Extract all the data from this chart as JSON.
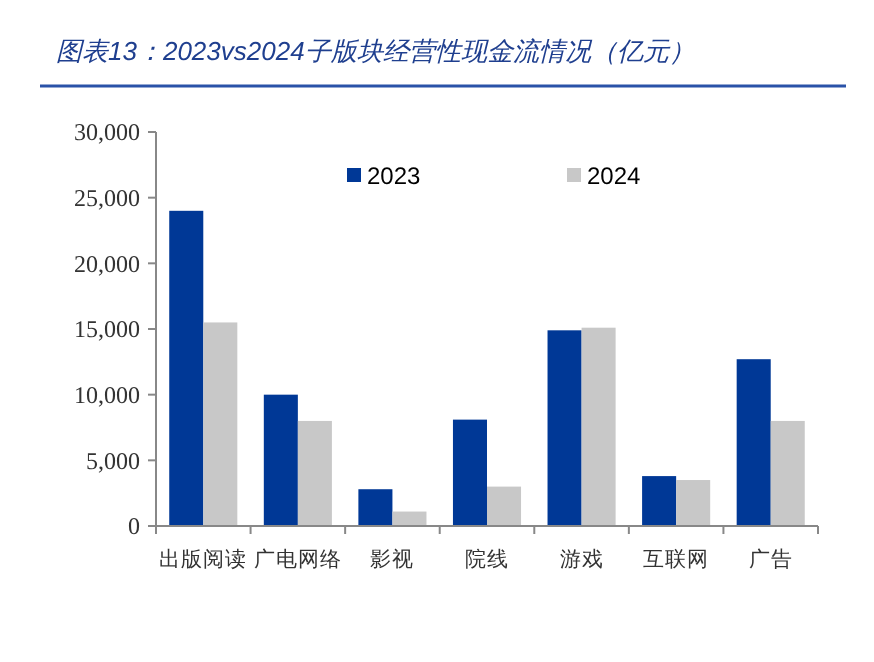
{
  "chart_data": {
    "type": "bar",
    "title": "图表13：2023vs2024子版块经营性现金流情况（亿元）",
    "categories": [
      "出版阅读",
      "广电网络",
      "影视",
      "院线",
      "游戏",
      "互联网",
      "广告"
    ],
    "series": [
      {
        "name": "2023",
        "color": "#003896",
        "values": [
          24000,
          10000,
          2800,
          8100,
          14900,
          3800,
          12700
        ]
      },
      {
        "name": "2024",
        "color": "#c8c8c8",
        "values": [
          15500,
          8000,
          1100,
          3000,
          15100,
          3500,
          8000
        ]
      }
    ],
    "ylim": [
      0,
      30000
    ],
    "yticks": [
      {
        "value": 0,
        "label": "0"
      },
      {
        "value": 5000,
        "label": "5,000"
      },
      {
        "value": 10000,
        "label": "10,000"
      },
      {
        "value": 15000,
        "label": "15,000"
      },
      {
        "value": 20000,
        "label": "20,000"
      },
      {
        "value": 25000,
        "label": "25,000"
      },
      {
        "value": 30000,
        "label": "30,000"
      }
    ],
    "grid": false,
    "legend": "top"
  }
}
